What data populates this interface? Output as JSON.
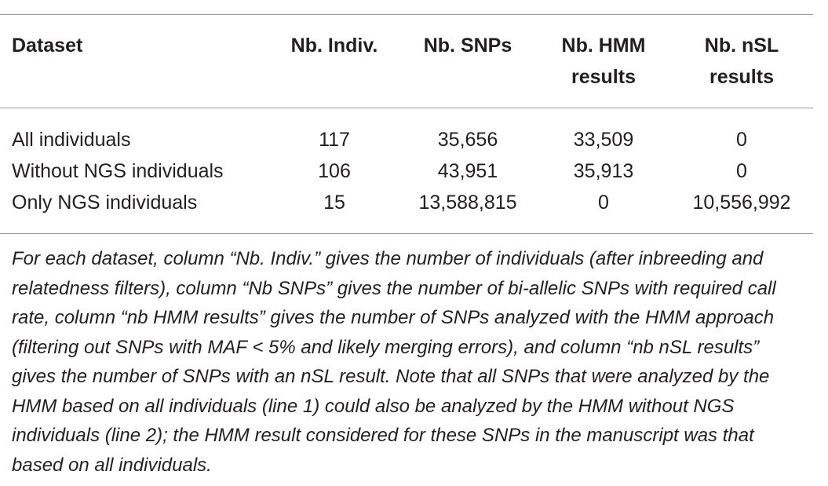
{
  "table": {
    "headers": [
      "Dataset",
      "Nb. Indiv.",
      "Nb. SNPs",
      "Nb. HMM results",
      "Nb. nSL results"
    ],
    "rows": [
      [
        "All individuals",
        "117",
        "35,656",
        "33,509",
        "0"
      ],
      [
        "Without NGS individuals",
        "106",
        "43,951",
        "35,913",
        "0"
      ],
      [
        "Only NGS individuals",
        "15",
        "13,588,815",
        "0",
        "10,556,992"
      ]
    ]
  },
  "footnote": "For each dataset, column “Nb. Indiv.” gives the number of individuals (after inbreeding and relatedness filters), column “Nb SNPs” gives the number of bi-allelic SNPs with required call rate, column “nb HMM results” gives the number of SNPs analyzed with the HMM approach (filtering out SNPs with MAF < 5% and likely merging errors), and column “nb nSL results” gives the number of SNPs with an nSL result. Note that all SNPs that were analyzed by the HMM based on all individuals (line 1) could also be analyzed by the HMM without NGS individuals (line 2); the HMM result considered for these SNPs in the manuscript was that based on all individuals."
}
